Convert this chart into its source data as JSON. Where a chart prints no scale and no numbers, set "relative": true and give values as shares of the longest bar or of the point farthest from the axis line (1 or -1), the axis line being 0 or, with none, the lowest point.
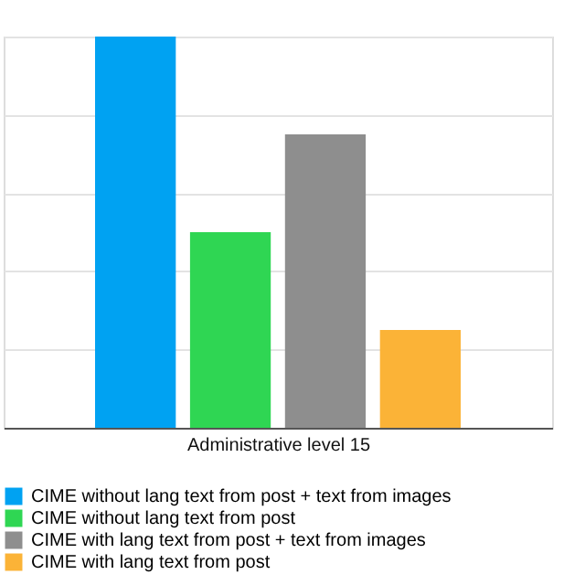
{
  "chart_data": {
    "type": "bar",
    "relative": true,
    "categories": [
      null
    ],
    "xlabel": "Administrative level 15",
    "series": [
      {
        "name": "CIME without lang text from post + text from images",
        "color": "#00a2f2",
        "values": [
          1
        ]
      },
      {
        "name": "CIME without lang text from post",
        "color": "#2fd653",
        "values": [
          0.5
        ]
      },
      {
        "name": "CIME with lang text from post + text from images",
        "color": "#8e8e8e",
        "values": [
          0.75
        ]
      },
      {
        "name": "CIME with lang text from post",
        "color": "#fbb337",
        "values": [
          0.25
        ]
      }
    ],
    "grid": "y",
    "legend": "bottom"
  }
}
